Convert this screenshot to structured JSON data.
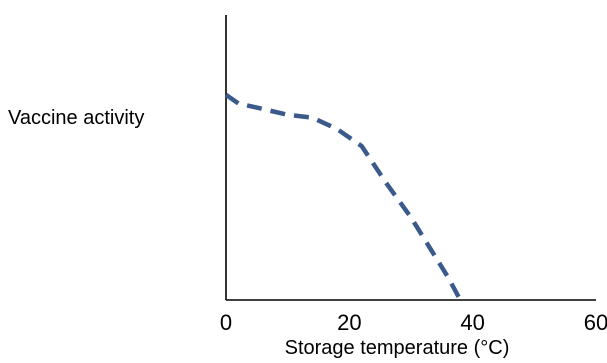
{
  "chart_data": {
    "type": "line",
    "title": "",
    "xlabel": "Storage temperature (°C)",
    "ylabel": "Vaccine activity",
    "xlim": [
      0,
      60
    ],
    "ylim": [
      0,
      100
    ],
    "x_ticks": [
      "0",
      "20",
      "40",
      "60"
    ],
    "y_ticks": [],
    "grid": false,
    "line_style": "dashed",
    "series_color": "#3a5a8c",
    "series": [
      {
        "x": [
          0,
          2,
          6,
          10,
          14,
          18,
          22,
          26,
          30,
          34,
          36,
          38
        ],
        "y": [
          72,
          69,
          67,
          65,
          64,
          60,
          54,
          41,
          29,
          15,
          8,
          0
        ]
      }
    ]
  }
}
